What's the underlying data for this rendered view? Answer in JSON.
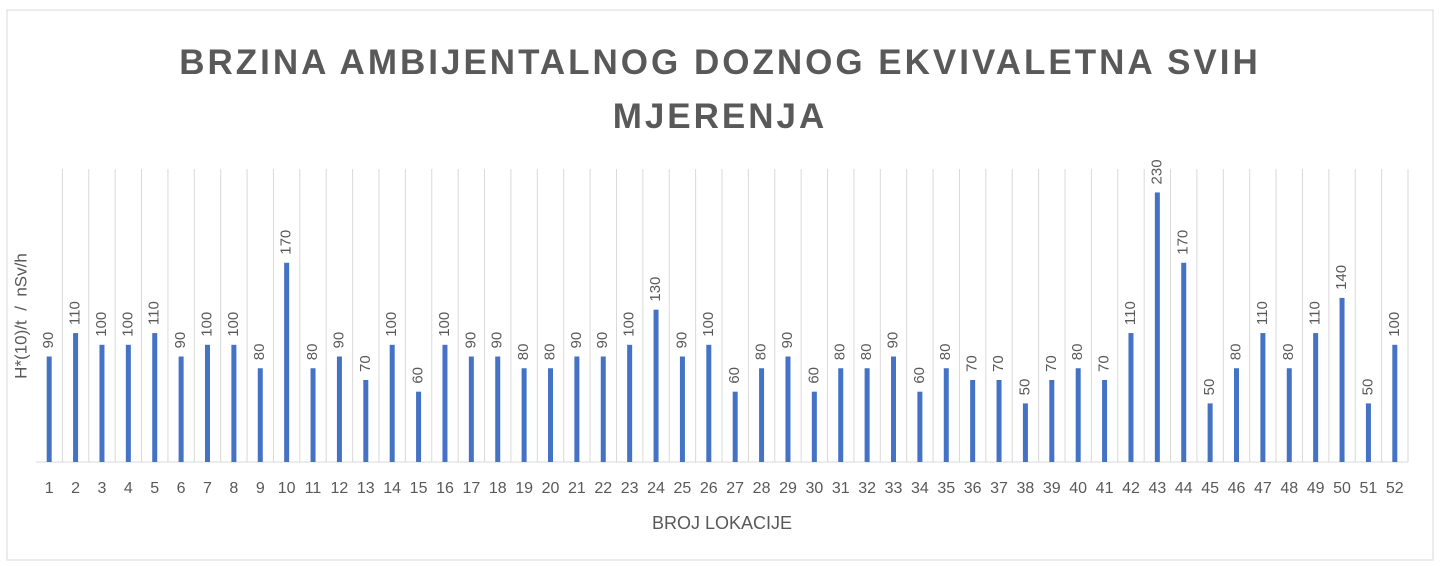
{
  "chart_data": {
    "type": "bar",
    "title": "BRZINA AMBIJENTALNOG DOZNOG EKVIVALETNA SVIH MJERENJA",
    "x_label": "BROJ LOKACIJE",
    "y_label": "H*(10)/t  /  nSv/h",
    "categories": [
      "1",
      "2",
      "3",
      "4",
      "5",
      "6",
      "7",
      "8",
      "9",
      "10",
      "11",
      "12",
      "13",
      "14",
      "15",
      "16",
      "17",
      "18",
      "19",
      "20",
      "21",
      "22",
      "23",
      "24",
      "25",
      "26",
      "27",
      "28",
      "29",
      "30",
      "31",
      "32",
      "33",
      "34",
      "35",
      "36",
      "37",
      "38",
      "39",
      "40",
      "41",
      "42",
      "43",
      "44",
      "45",
      "46",
      "47",
      "48",
      "49",
      "50",
      "51",
      "52"
    ],
    "values": [
      90,
      110,
      100,
      100,
      110,
      90,
      100,
      100,
      80,
      170,
      80,
      90,
      70,
      100,
      60,
      100,
      90,
      90,
      80,
      80,
      90,
      90,
      100,
      130,
      90,
      100,
      60,
      80,
      90,
      60,
      80,
      80,
      90,
      60,
      80,
      70,
      70,
      50,
      70,
      80,
      70,
      110,
      230,
      170,
      50,
      80,
      110,
      80,
      110,
      140,
      50,
      100
    ],
    "color": "#4472c4",
    "ylim": [
      0,
      250
    ],
    "grid": true
  }
}
